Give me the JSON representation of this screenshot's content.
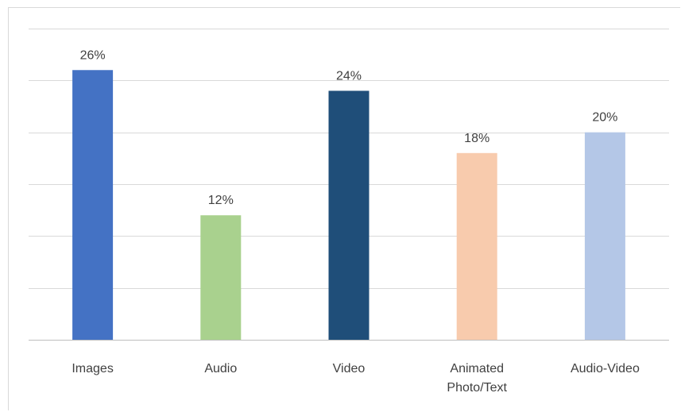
{
  "chart_data": {
    "type": "bar",
    "title": "",
    "xlabel": "",
    "ylabel": "",
    "categories": [
      "Images",
      "Audio",
      "Video",
      "Animated Photo/Text",
      "Audio-Video"
    ],
    "category_lines": [
      [
        "Images"
      ],
      [
        "Audio"
      ],
      [
        "Video"
      ],
      [
        "Animated",
        "Photo/Text"
      ],
      [
        "Audio-Video"
      ]
    ],
    "values": [
      26,
      12,
      24,
      18,
      20
    ],
    "data_labels": [
      "26%",
      "12%",
      "24%",
      "18%",
      "20%"
    ],
    "colors": [
      "#4472c4",
      "#a9d18e",
      "#1f4e79",
      "#f8cbad",
      "#b4c7e7"
    ],
    "ylim": [
      0,
      30
    ],
    "y_gridlines": [
      0,
      5,
      10,
      15,
      20,
      25,
      30
    ],
    "y_tick_labels_shown": false,
    "grid": true,
    "legend": "none"
  }
}
